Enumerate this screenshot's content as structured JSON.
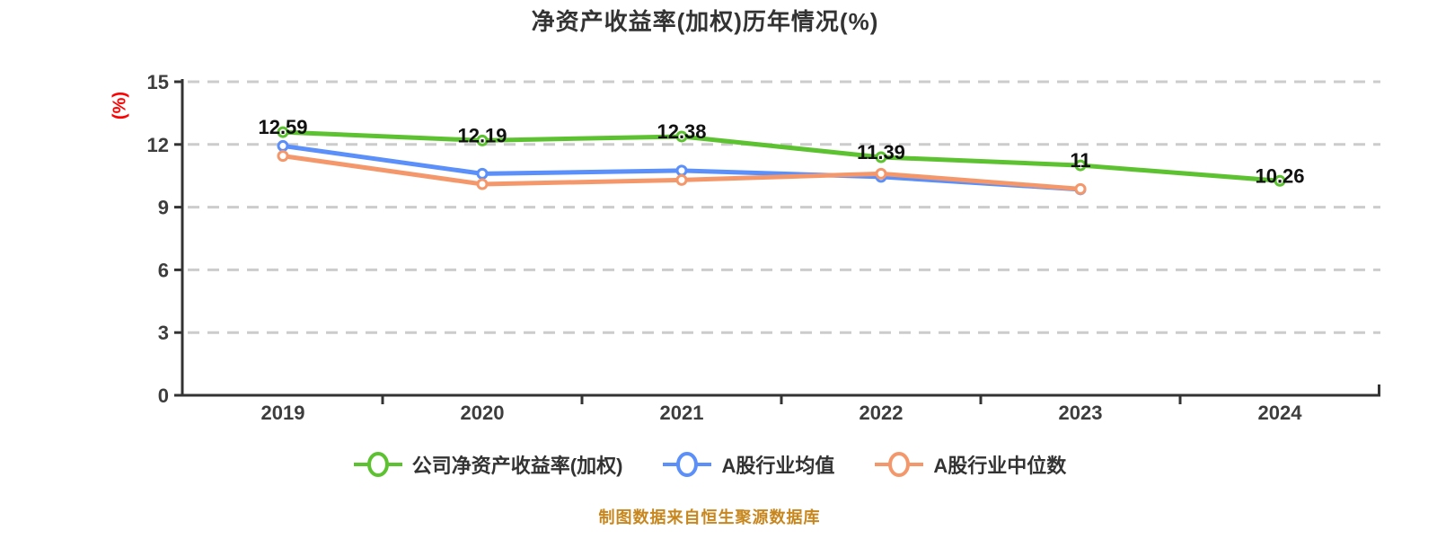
{
  "chart_data": {
    "type": "line",
    "title": "净资产收益率(加权)历年情况(%)",
    "ylabel": "(%)",
    "xlabel": "",
    "footer": "制图数据来自恒生聚源数据库",
    "categories": [
      "2019",
      "2020",
      "2021",
      "2022",
      "2023",
      "2024"
    ],
    "ylim": [
      0,
      15
    ],
    "yticks": [
      0,
      3,
      6,
      9,
      12,
      15
    ],
    "grid": "horizontal-dashed",
    "legend_position": "bottom",
    "series": [
      {
        "name": "公司净资产收益率(加权)",
        "color": "#5cc230",
        "values": [
          12.59,
          12.19,
          12.38,
          11.39,
          11,
          10.26
        ],
        "point_labels": [
          "12.59",
          "12.19",
          "12.38",
          "11.39",
          "11",
          "10.26"
        ]
      },
      {
        "name": "A股行业均值",
        "color": "#5b8ff9",
        "values": [
          11.93,
          10.6,
          10.75,
          10.45,
          9.85,
          null
        ]
      },
      {
        "name": "A股行业中位数",
        "color": "#f4986b",
        "values": [
          11.45,
          10.1,
          10.3,
          10.6,
          9.87,
          null
        ]
      }
    ],
    "colors": {
      "axis": "#333333",
      "grid": "#cccccc",
      "tick_label": "#3d3d3d",
      "data_label": "#111111",
      "y_unit": "#ff0000",
      "title": "#333333",
      "footer": "#c8871e",
      "marker_fill": "#ffffff"
    }
  }
}
